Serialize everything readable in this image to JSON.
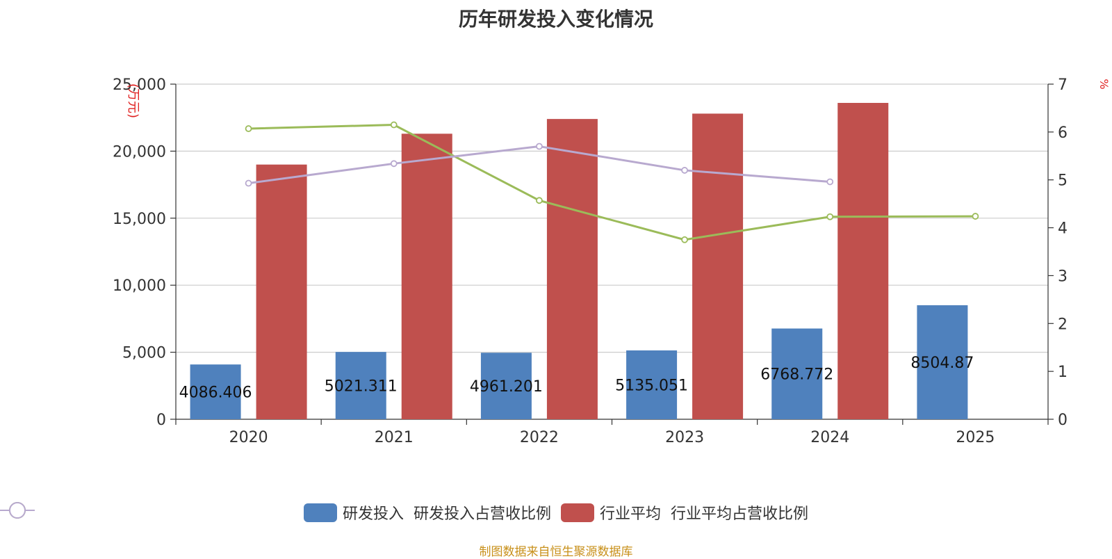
{
  "chart_data": {
    "type": "bar",
    "title": "历年研发投入变化情况",
    "categories": [
      "2020",
      "2021",
      "2022",
      "2023",
      "2024",
      "2025"
    ],
    "ylabel_left": "(万元)",
    "ylabel_right": "%",
    "ylim_left": [
      0,
      25000
    ],
    "ylim_right": [
      0,
      7
    ],
    "yticks_left": [
      "0",
      "5,000",
      "10,000",
      "15,000",
      "20,000",
      "25,000"
    ],
    "yticks_right": [
      "0",
      "1",
      "2",
      "3",
      "4",
      "5",
      "6",
      "7"
    ],
    "grid": true,
    "legend_position": "bottom",
    "series": [
      {
        "name": "研发投入",
        "type": "bar",
        "axis": "left",
        "color": "#4f81bd",
        "values": [
          4086.406,
          5021.311,
          4961.201,
          5135.051,
          6768.772,
          8504.87
        ],
        "labels": [
          "4086.406",
          "5021.311",
          "4961.201",
          "5135.051",
          "6768.772",
          "8504.87"
        ]
      },
      {
        "name": "研发投入占营收比例",
        "type": "line",
        "axis": "right",
        "color": "#9bbb59",
        "values": [
          6.07,
          6.15,
          4.57,
          3.75,
          4.23,
          4.24
        ]
      },
      {
        "name": "行业平均",
        "type": "bar",
        "axis": "left",
        "color": "#c0504d",
        "values": [
          19000,
          21300,
          22400,
          22800,
          23600,
          null
        ]
      },
      {
        "name": "行业平均占营收比例",
        "type": "line",
        "axis": "right",
        "color": "#b8a9cf",
        "values": [
          4.93,
          5.34,
          5.7,
          5.2,
          4.96,
          null
        ]
      }
    ]
  },
  "legend": [
    {
      "label": "研发投入",
      "kind": "bar",
      "color": "#4f81bd"
    },
    {
      "label": "研发投入占营收比例",
      "kind": "line",
      "color": "#9bbb59"
    },
    {
      "label": "行业平均",
      "kind": "bar",
      "color": "#c0504d"
    },
    {
      "label": "行业平均占营收比例",
      "kind": "line",
      "color": "#b8a9cf"
    }
  ],
  "source": "制图数据来自恒生聚源数据库"
}
